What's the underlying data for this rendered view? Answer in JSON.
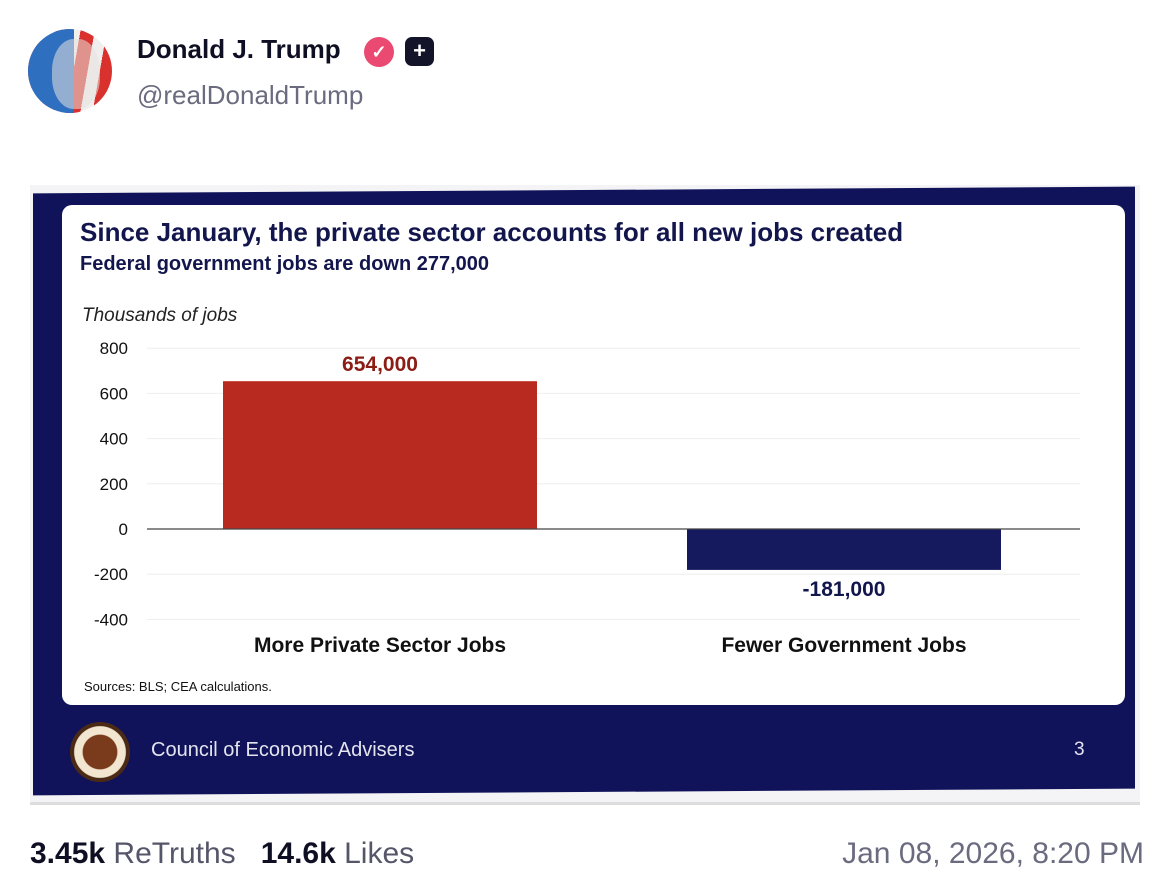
{
  "post": {
    "author_name": "Donald J. Trump",
    "handle": "@realDonaldTrump",
    "verified_icon": "verified-badge-icon",
    "plus_icon": "plus-badge-icon",
    "retruths_count": "3.45k",
    "retruths_label": "ReTruths",
    "likes_count": "14.6k",
    "likes_label": "Likes",
    "timestamp": "Jan 08, 2026, 8:20 PM"
  },
  "slide": {
    "title": "Since January, the private sector accounts for all new jobs created",
    "subtitle": "Federal government jobs are down 277,000",
    "source": "Sources: BLS; CEA calculations.",
    "footer": "Council of Economic Advisers",
    "page_number": "3"
  },
  "colors": {
    "navy": "#10135a",
    "red": "#b8291f",
    "bar_navy": "#15195e"
  },
  "chart_data": {
    "type": "bar",
    "title": "Since January, the private sector accounts for all new jobs created",
    "ylabel": "Thousands of jobs",
    "categories": [
      "More Private Sector Jobs",
      "Fewer Government Jobs"
    ],
    "values": [
      654,
      -181
    ],
    "data_labels": [
      "654,000",
      "-181,000"
    ],
    "yticks": [
      "800",
      "600",
      "400",
      "200",
      "0",
      "-200",
      "-400"
    ],
    "ytick_values": [
      800,
      600,
      400,
      200,
      0,
      -200,
      -400
    ],
    "ylim": [
      -400,
      800
    ],
    "grid": true
  }
}
